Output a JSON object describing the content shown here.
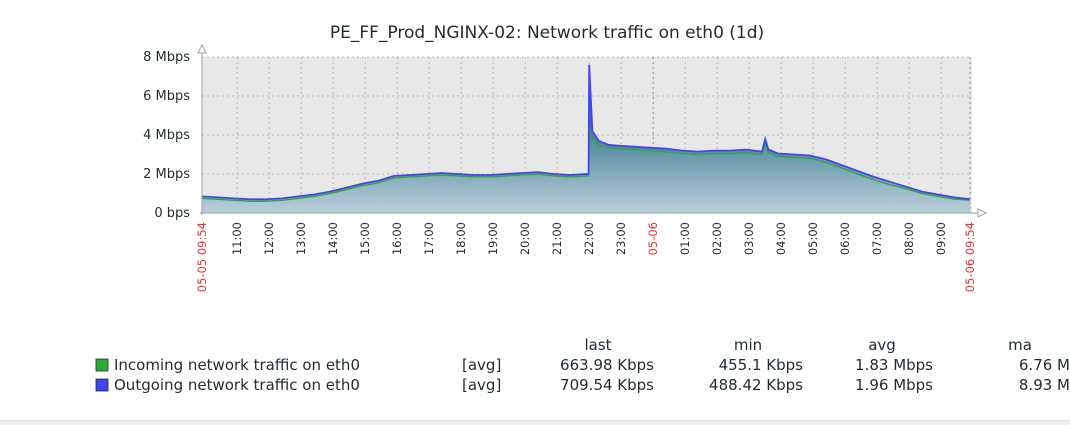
{
  "chart_data": {
    "type": "area",
    "title": "PE_FF_Prod_NGINX-02: Network traffic on eth0 (1d)",
    "xlabel": "",
    "ylabel": "",
    "ylim": [
      0,
      8
    ],
    "y_unit": "Mbps",
    "y_tick_labels": [
      "0 bps",
      "2 Mbps",
      "4 Mbps",
      "6 Mbps",
      "8 Mbps"
    ],
    "y_ticks": [
      0,
      2,
      4,
      6,
      8
    ],
    "x_tick_labels": [
      "05-05 09:54",
      "11:00",
      "12:00",
      "13:00",
      "14:00",
      "15:00",
      "16:00",
      "17:00",
      "18:00",
      "19:00",
      "20:00",
      "21:00",
      "22:00",
      "23:00",
      "05-06",
      "01:00",
      "02:00",
      "03:00",
      "04:00",
      "05:00",
      "06:00",
      "07:00",
      "08:00",
      "09:00",
      "05-06 09:54"
    ],
    "x_tick_hours": [
      0,
      1.1,
      2.1,
      3.1,
      4.1,
      5.1,
      6.1,
      7.1,
      8.1,
      9.1,
      10.1,
      11.1,
      12.1,
      13.1,
      14.1,
      15.1,
      16.1,
      17.1,
      18.1,
      19.1,
      20.1,
      21.1,
      22.1,
      23.1,
      24
    ],
    "red_tick_labels": [
      "05-05 09:54",
      "05-06",
      "05-06 09:54"
    ],
    "grid": true,
    "x_hours": [
      0,
      0.5,
      1,
      1.5,
      2,
      2.5,
      3,
      3.5,
      4,
      4.5,
      5,
      5.5,
      6,
      6.5,
      7,
      7.5,
      8,
      8.5,
      9,
      9.5,
      10,
      10.5,
      11,
      11.5,
      12,
      12.08,
      12.1,
      12.2,
      12.4,
      12.7,
      13,
      13.5,
      14,
      14.5,
      15,
      15.5,
      16,
      16.5,
      17,
      17.5,
      17.6,
      17.7,
      18,
      18.5,
      19,
      19.5,
      20,
      20.5,
      21,
      21.5,
      22,
      22.5,
      23,
      23.5,
      24
    ],
    "series": [
      {
        "name": "Incoming network traffic on eth0",
        "color": "#2faa3a",
        "values": [
          0.75,
          0.7,
          0.65,
          0.6,
          0.6,
          0.65,
          0.75,
          0.85,
          1.0,
          1.2,
          1.4,
          1.55,
          1.8,
          1.85,
          1.9,
          1.95,
          1.9,
          1.85,
          1.85,
          1.9,
          1.95,
          2.0,
          1.9,
          1.85,
          1.9,
          1.9,
          4.5,
          3.8,
          3.5,
          3.35,
          3.3,
          3.25,
          3.2,
          3.15,
          3.05,
          3.0,
          3.05,
          3.05,
          3.1,
          3.0,
          3.6,
          3.1,
          2.9,
          2.85,
          2.8,
          2.6,
          2.3,
          2.0,
          1.7,
          1.45,
          1.25,
          1.0,
          0.85,
          0.72,
          0.66
        ]
      },
      {
        "name": "Outgoing network traffic on eth0",
        "color": "#4444ee",
        "values": [
          0.85,
          0.8,
          0.75,
          0.7,
          0.7,
          0.75,
          0.85,
          0.95,
          1.1,
          1.3,
          1.5,
          1.65,
          1.9,
          1.95,
          2.0,
          2.05,
          2.0,
          1.95,
          1.95,
          2.0,
          2.05,
          2.1,
          2.0,
          1.95,
          2.0,
          2.0,
          7.6,
          4.2,
          3.7,
          3.5,
          3.45,
          3.4,
          3.35,
          3.3,
          3.2,
          3.15,
          3.2,
          3.2,
          3.25,
          3.15,
          3.8,
          3.25,
          3.05,
          3.0,
          2.95,
          2.75,
          2.45,
          2.15,
          1.85,
          1.6,
          1.35,
          1.1,
          0.95,
          0.8,
          0.71
        ]
      }
    ],
    "legend": {
      "placement": "bottom-left",
      "columns": [
        "last",
        "min",
        "avg",
        "ma"
      ],
      "rows": [
        {
          "label": "Incoming network traffic on eth0",
          "func": "[avg]",
          "last": "663.98 Kbps",
          "min": "455.1 Kbps",
          "avg": "1.83 Mbps",
          "max": "6.76 M"
        },
        {
          "label": "Outgoing network traffic on eth0",
          "func": "[avg]",
          "last": "709.54 Kbps",
          "min": "488.42 Kbps",
          "avg": "1.96 Mbps",
          "max": "8.93 M"
        }
      ]
    }
  }
}
